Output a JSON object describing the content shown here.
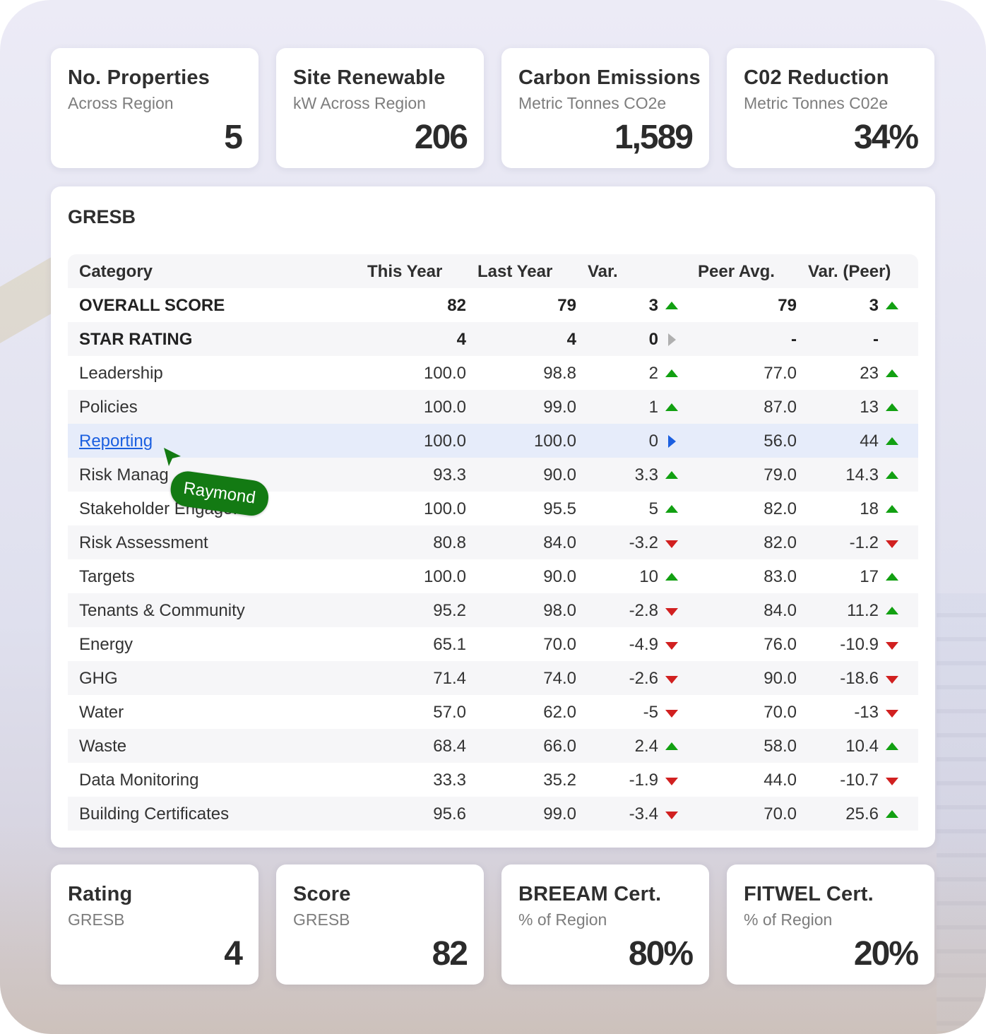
{
  "colors": {
    "up": "#12a012",
    "down": "#d12020",
    "neutral": "#b0b0b0",
    "link": "#1b5fe0",
    "tag": "#137a13",
    "highlight": "#e6ecfa"
  },
  "kpi_top": [
    {
      "title": "No. Properties",
      "subtitle": "Across Region",
      "value": "5"
    },
    {
      "title": "Site Renewable",
      "subtitle": "kW Across Region",
      "value": "206"
    },
    {
      "title": "Carbon Emissions",
      "subtitle": "Metric Tonnes CO2e",
      "value": "1,589"
    },
    {
      "title": "C02 Reduction",
      "subtitle": "Metric Tonnes C02e",
      "value": "34%"
    }
  ],
  "gresb": {
    "title": "GRESB",
    "headers": {
      "category": "Category",
      "this_year": "This Year",
      "last_year": "Last Year",
      "var": "Var.",
      "peer_avg": "Peer Avg.",
      "var_peer": "Var. (Peer)"
    },
    "rows": [
      {
        "category": "OVERALL SCORE",
        "this_year": "82",
        "last_year": "79",
        "var": "3",
        "var_icon": "triangle-up-icon",
        "peer_avg": "79",
        "var_peer": "3",
        "var_peer_icon": "triangle-up-icon"
      },
      {
        "category": "STAR RATING",
        "this_year": "4",
        "last_year": "4",
        "var": "0",
        "var_icon": "triangle-right-icon",
        "peer_avg": "-",
        "var_peer": "-",
        "var_peer_icon": ""
      },
      {
        "category": "Leadership",
        "this_year": "100.0",
        "last_year": "98.8",
        "var": "2",
        "var_icon": "triangle-up-icon",
        "peer_avg": "77.0",
        "var_peer": "23",
        "var_peer_icon": "triangle-up-icon"
      },
      {
        "category": "Policies",
        "this_year": "100.0",
        "last_year": "99.0",
        "var": "1",
        "var_icon": "triangle-up-icon",
        "peer_avg": "87.0",
        "var_peer": "13",
        "var_peer_icon": "triangle-up-icon"
      },
      {
        "category": "Reporting",
        "this_year": "100.0",
        "last_year": "100.0",
        "var": "0",
        "var_icon": "triangle-right-icon",
        "peer_avg": "56.0",
        "var_peer": "44",
        "var_peer_icon": "triangle-up-icon"
      },
      {
        "category": "Risk Manag",
        "this_year": "93.3",
        "last_year": "90.0",
        "var": "3.3",
        "var_icon": "triangle-up-icon",
        "peer_avg": "79.0",
        "var_peer": "14.3",
        "var_peer_icon": "triangle-up-icon"
      },
      {
        "category": "Stakeholder Engage.",
        "this_year": "100.0",
        "last_year": "95.5",
        "var": "5",
        "var_icon": "triangle-up-icon",
        "peer_avg": "82.0",
        "var_peer": "18",
        "var_peer_icon": "triangle-up-icon"
      },
      {
        "category": "Risk Assessment",
        "this_year": "80.8",
        "last_year": "84.0",
        "var": "-3.2",
        "var_icon": "triangle-down-icon",
        "peer_avg": "82.0",
        "var_peer": "-1.2",
        "var_peer_icon": "triangle-down-icon"
      },
      {
        "category": "Targets",
        "this_year": "100.0",
        "last_year": "90.0",
        "var": "10",
        "var_icon": "triangle-up-icon",
        "peer_avg": "83.0",
        "var_peer": "17",
        "var_peer_icon": "triangle-up-icon"
      },
      {
        "category": "Tenants & Community",
        "this_year": "95.2",
        "last_year": "98.0",
        "var": "-2.8",
        "var_icon": "triangle-down-icon",
        "peer_avg": "84.0",
        "var_peer": "11.2",
        "var_peer_icon": "triangle-up-icon"
      },
      {
        "category": "Energy",
        "this_year": "65.1",
        "last_year": "70.0",
        "var": "-4.9",
        "var_icon": "triangle-down-icon",
        "peer_avg": "76.0",
        "var_peer": "-10.9",
        "var_peer_icon": "triangle-down-icon"
      },
      {
        "category": "GHG",
        "this_year": "71.4",
        "last_year": "74.0",
        "var": "-2.6",
        "var_icon": "triangle-down-icon",
        "peer_avg": "90.0",
        "var_peer": "-18.6",
        "var_peer_icon": "triangle-down-icon"
      },
      {
        "category": "Water",
        "this_year": "57.0",
        "last_year": "62.0",
        "var": "-5",
        "var_icon": "triangle-down-icon",
        "peer_avg": "70.0",
        "var_peer": "-13",
        "var_peer_icon": "triangle-down-icon"
      },
      {
        "category": "Waste",
        "this_year": "68.4",
        "last_year": "66.0",
        "var": "2.4",
        "var_icon": "triangle-up-icon",
        "peer_avg": "58.0",
        "var_peer": "10.4",
        "var_peer_icon": "triangle-up-icon"
      },
      {
        "category": "Data Monitoring",
        "this_year": "33.3",
        "last_year": "35.2",
        "var": "-1.9",
        "var_icon": "triangle-down-icon",
        "peer_avg": "44.0",
        "var_peer": "-10.7",
        "var_peer_icon": "triangle-down-icon"
      },
      {
        "category": "Building Certificates",
        "this_year": "95.6",
        "last_year": "99.0",
        "var": "-3.4",
        "var_icon": "triangle-down-icon",
        "peer_avg": "70.0",
        "var_peer": "25.6",
        "var_peer_icon": "triangle-up-icon"
      }
    ]
  },
  "kpi_bottom": [
    {
      "title": "Rating",
      "subtitle": "GRESB",
      "value": "4"
    },
    {
      "title": "Score",
      "subtitle": "GRESB",
      "value": "82"
    },
    {
      "title": "BREEAM Cert.",
      "subtitle": "% of Region",
      "value": "80%"
    },
    {
      "title": "FITWEL Cert.",
      "subtitle": "% of Region",
      "value": "20%"
    }
  ],
  "cursor": {
    "user_name": "Raymond",
    "icon": "cursor-arrow-icon"
  }
}
